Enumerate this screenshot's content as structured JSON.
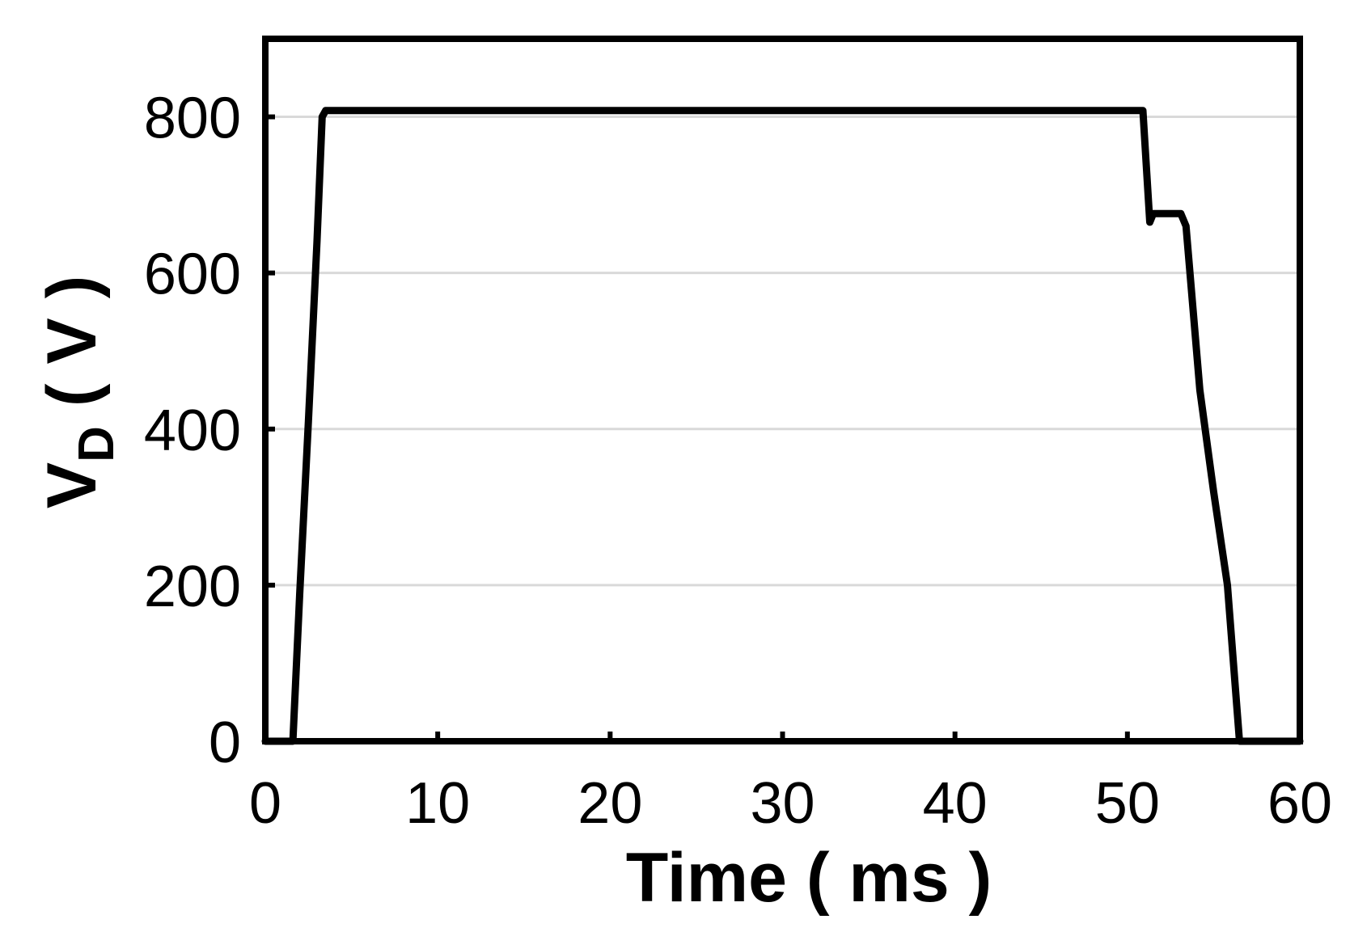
{
  "chart_data": {
    "type": "line",
    "title": "",
    "xlabel": "Time ( ms )",
    "ylabel_main": "V",
    "ylabel_sub": "D",
    "ylabel_unit": " ( V )",
    "xlim": [
      0,
      60
    ],
    "ylim": [
      0,
      900
    ],
    "xticks": [
      0,
      10,
      20,
      30,
      40,
      50,
      60
    ],
    "yticks": [
      0,
      200,
      400,
      600,
      800
    ],
    "grid": "horizontal",
    "colors": {
      "line": "#000000",
      "grid": "#d9d9d9",
      "frame": "#000000"
    },
    "series": [
      {
        "x": [
          0,
          1.6,
          2.0,
          2.5,
          3.0,
          3.3,
          3.5,
          10,
          20,
          30,
          40,
          50.9,
          51.3,
          51.5,
          52.5,
          53.1,
          53.4,
          54.2,
          55.0,
          55.8,
          56.5,
          57,
          60
        ],
        "y": [
          0,
          0,
          190,
          410,
          640,
          800,
          808,
          808,
          808,
          808,
          808,
          808,
          665,
          676,
          676,
          676,
          660,
          450,
          320,
          200,
          0,
          0,
          0
        ]
      }
    ]
  }
}
